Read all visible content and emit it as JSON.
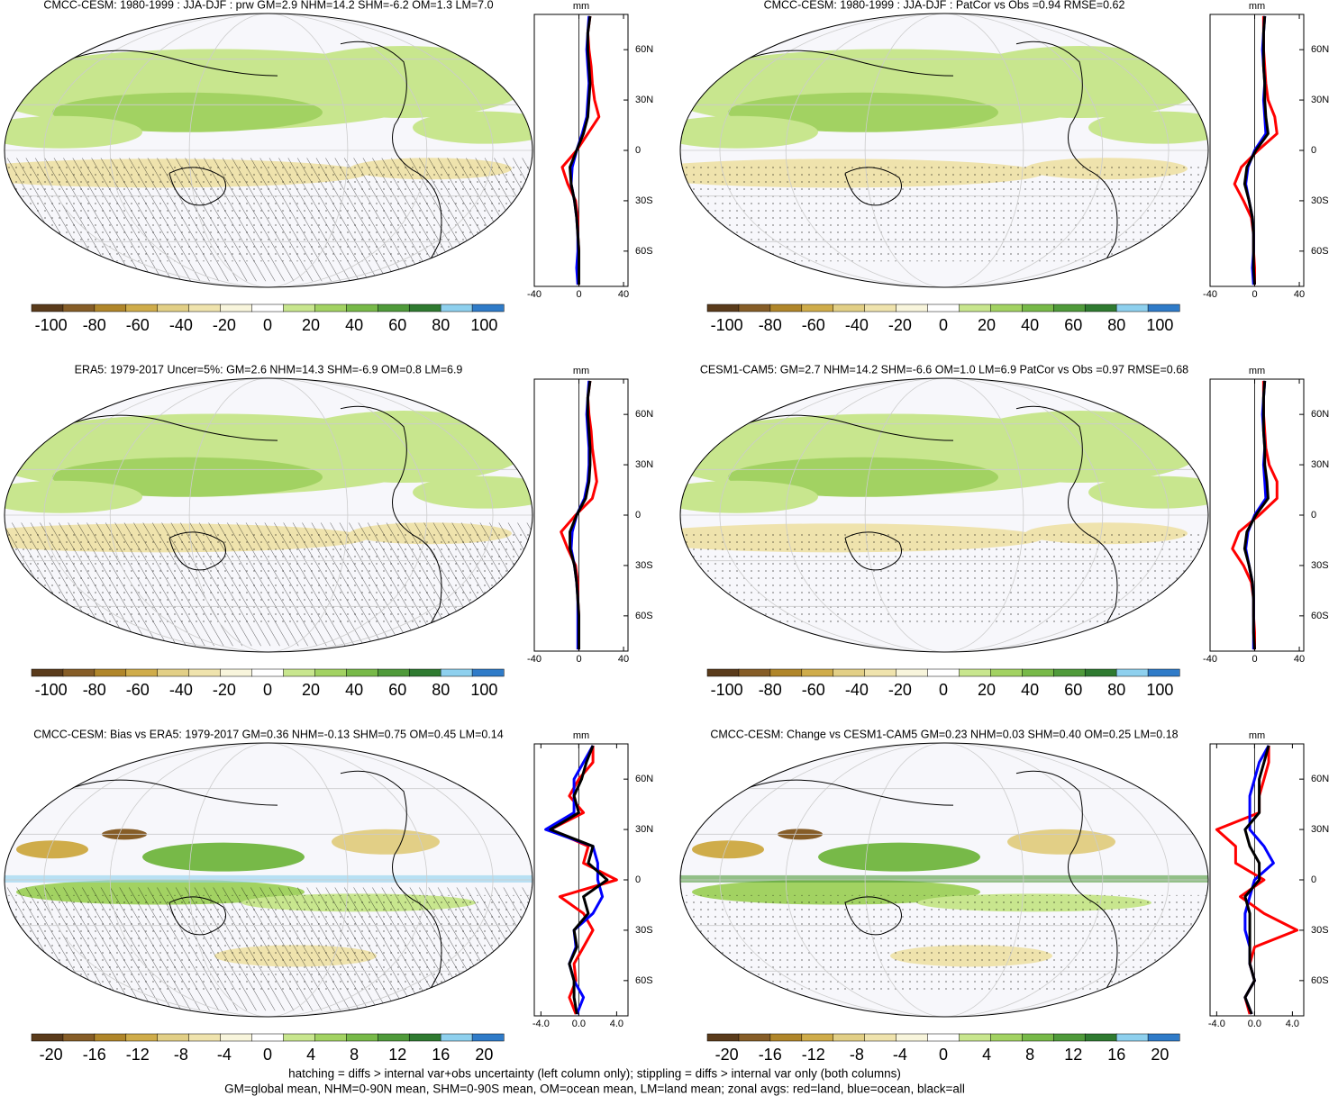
{
  "chart_data": [
    {
      "type": "line",
      "title": "CMCC-CESM: 1980-1999 : JJA-DJF : prw GM=2.9 NHM=14.2 SHM=-6.2 OM=1.3 LM=7.0",
      "x_label": "mm",
      "lat": [
        -80,
        -70,
        -60,
        -50,
        -40,
        -30,
        -20,
        -10,
        0,
        10,
        20,
        30,
        40,
        50,
        60,
        70,
        80
      ],
      "series": [
        {
          "color": "#ff0000",
          "values": [
            0,
            0,
            0,
            -1,
            -1,
            -3,
            -10,
            -15,
            -2,
            8,
            18,
            14,
            12,
            11,
            9,
            8,
            10
          ]
        },
        {
          "color": "#0000ff",
          "values": [
            -1,
            -2,
            -1,
            -1,
            -2,
            -4,
            -7,
            -6,
            -2,
            3,
            7,
            8,
            9,
            8,
            7,
            8,
            9
          ]
        },
        {
          "color": "#000000",
          "values": [
            0,
            0,
            0,
            -1,
            -2,
            -4,
            -7,
            -8,
            -2,
            4,
            8,
            9,
            10,
            9,
            8,
            8,
            10
          ]
        }
      ],
      "xlim": [
        -40,
        44
      ],
      "xticks": [
        -40,
        0,
        40
      ],
      "ylim": [
        -81,
        81
      ],
      "yticks": [
        {
          "value": -60,
          "label": "60S"
        },
        {
          "value": -30,
          "label": "30S"
        },
        0,
        {
          "value": 30,
          "label": "30N"
        },
        {
          "value": 60,
          "label": "60N"
        }
      ],
      "colorbar": {
        "lim": [
          -109,
          109
        ],
        "ticks": [
          -100,
          -80,
          -60,
          -40,
          -20,
          0,
          20,
          40,
          60,
          80,
          100
        ],
        "colors": [
          "#5a3b1b",
          "#865d27",
          "#b0862a",
          "#cfac4a",
          "#e2cf86",
          "#efe3ad",
          "#f8f5dc",
          "#ffffff",
          "#c8e68e",
          "#a2d262",
          "#77b948",
          "#4f9a3a",
          "#2f7a30",
          "#8ed0ee",
          "#2f7bc8"
        ]
      }
    },
    {
      "type": "line",
      "title": "CMCC-CESM: 1980-1999 : JJA-DJF : PatCor vs Obs =0.94 RMSE=0.62",
      "x_label": "mm",
      "lat": [
        -80,
        -70,
        -60,
        -50,
        -40,
        -30,
        -20,
        -10,
        0,
        10,
        20,
        30,
        40,
        50,
        60,
        70,
        80
      ],
      "series": [
        {
          "color": "#ff0000",
          "values": [
            0,
            0,
            -1,
            -1,
            -3,
            -10,
            -18,
            -12,
            3,
            20,
            18,
            12,
            10,
            9,
            8,
            8,
            8
          ]
        },
        {
          "color": "#0000ff",
          "values": [
            -1,
            -2,
            -1,
            -1,
            -2,
            -5,
            -8,
            -6,
            0,
            10,
            9,
            8,
            9,
            8,
            7,
            8,
            9
          ]
        },
        {
          "color": "#000000",
          "values": [
            0,
            -1,
            -1,
            -1,
            -2,
            -5,
            -9,
            -7,
            1,
            12,
            10,
            9,
            9,
            8,
            8,
            8,
            9
          ]
        }
      ],
      "xlim": [
        -40,
        44
      ],
      "xticks": [
        -40,
        0,
        40
      ],
      "ylim": [
        -81,
        81
      ],
      "yticks": [
        {
          "value": -60,
          "label": "60S"
        },
        {
          "value": -30,
          "label": "30S"
        },
        0,
        {
          "value": 30,
          "label": "30N"
        },
        {
          "value": 60,
          "label": "60N"
        }
      ],
      "colorbar": {
        "lim": [
          -109,
          109
        ],
        "ticks": [
          -100,
          -80,
          -60,
          -40,
          -20,
          0,
          20,
          40,
          60,
          80,
          100
        ],
        "colors": [
          "#5a3b1b",
          "#865d27",
          "#b0862a",
          "#cfac4a",
          "#e2cf86",
          "#efe3ad",
          "#f8f5dc",
          "#ffffff",
          "#c8e68e",
          "#a2d262",
          "#77b948",
          "#4f9a3a",
          "#2f7a30",
          "#8ed0ee",
          "#2f7bc8"
        ]
      }
    },
    {
      "type": "line",
      "title": "ERA5: 1979-2017 Uncer=5%: GM=2.6 NHM=14.3 SHM=-6.9 OM=0.8 LM=6.9",
      "x_label": "mm",
      "lat": [
        -80,
        -70,
        -60,
        -50,
        -40,
        -30,
        -20,
        -10,
        0,
        10,
        20,
        30,
        40,
        50,
        60,
        70,
        80
      ],
      "series": [
        {
          "color": "#ff0000",
          "values": [
            0,
            0,
            0,
            -1,
            -1,
            -3,
            -10,
            -16,
            -3,
            12,
            16,
            14,
            12,
            11,
            9,
            8,
            10
          ]
        },
        {
          "color": "#0000ff",
          "values": [
            -1,
            -1,
            -1,
            -1,
            -2,
            -4,
            -7,
            -6,
            -2,
            5,
            8,
            9,
            9,
            8,
            7,
            8,
            9
          ]
        },
        {
          "color": "#000000",
          "values": [
            0,
            0,
            0,
            -1,
            -2,
            -4,
            -8,
            -8,
            -2,
            6,
            9,
            10,
            10,
            9,
            8,
            8,
            10
          ]
        }
      ],
      "xlim": [
        -40,
        44
      ],
      "xticks": [
        -40,
        0,
        40
      ],
      "ylim": [
        -81,
        81
      ],
      "yticks": [
        {
          "value": -60,
          "label": "60S"
        },
        {
          "value": -30,
          "label": "30S"
        },
        0,
        {
          "value": 30,
          "label": "30N"
        },
        {
          "value": 60,
          "label": "60N"
        }
      ],
      "colorbar": {
        "lim": [
          -109,
          109
        ],
        "ticks": [
          -100,
          -80,
          -60,
          -40,
          -20,
          0,
          20,
          40,
          60,
          80,
          100
        ],
        "colors": [
          "#5a3b1b",
          "#865d27",
          "#b0862a",
          "#cfac4a",
          "#e2cf86",
          "#efe3ad",
          "#f8f5dc",
          "#ffffff",
          "#c8e68e",
          "#a2d262",
          "#77b948",
          "#4f9a3a",
          "#2f7a30",
          "#8ed0ee",
          "#2f7bc8"
        ]
      }
    },
    {
      "type": "line",
      "title": "CESM1-CAM5: GM=2.7 NHM=14.2 SHM=-6.6 OM=1.0 LM=6.9 PatCor vs Obs =0.97 RMSE=0.68",
      "x_label": "mm",
      "lat": [
        -80,
        -70,
        -60,
        -50,
        -40,
        -30,
        -20,
        -10,
        0,
        10,
        20,
        30,
        40,
        50,
        60,
        70,
        80
      ],
      "series": [
        {
          "color": "#ff0000",
          "values": [
            0,
            0,
            -1,
            -1,
            -3,
            -10,
            -20,
            -14,
            4,
            20,
            20,
            13,
            10,
            9,
            8,
            8,
            8
          ]
        },
        {
          "color": "#0000ff",
          "values": [
            -1,
            -1,
            -1,
            -1,
            -2,
            -5,
            -8,
            -6,
            0,
            10,
            9,
            8,
            9,
            8,
            7,
            8,
            9
          ]
        },
        {
          "color": "#000000",
          "values": [
            0,
            -1,
            -1,
            -1,
            -2,
            -5,
            -9,
            -7,
            1,
            12,
            11,
            9,
            9,
            8,
            8,
            8,
            9
          ]
        }
      ],
      "xlim": [
        -40,
        44
      ],
      "xticks": [
        -40,
        0,
        40
      ],
      "ylim": [
        -81,
        81
      ],
      "yticks": [
        {
          "value": -60,
          "label": "60S"
        },
        {
          "value": -30,
          "label": "30S"
        },
        0,
        {
          "value": 30,
          "label": "30N"
        },
        {
          "value": 60,
          "label": "60N"
        }
      ],
      "colorbar": {
        "lim": [
          -109,
          109
        ],
        "ticks": [
          -100,
          -80,
          -60,
          -40,
          -20,
          0,
          20,
          40,
          60,
          80,
          100
        ],
        "colors": [
          "#5a3b1b",
          "#865d27",
          "#b0862a",
          "#cfac4a",
          "#e2cf86",
          "#efe3ad",
          "#f8f5dc",
          "#ffffff",
          "#c8e68e",
          "#a2d262",
          "#77b948",
          "#4f9a3a",
          "#2f7a30",
          "#8ed0ee",
          "#2f7bc8"
        ]
      }
    },
    {
      "type": "line",
      "title": "CMCC-CESM: Bias vs ERA5: 1979-2017 GM=0.36 NHM=-0.13 SHM=0.75 OM=0.45 LM=0.14",
      "x_label": "mm",
      "lat": [
        -80,
        -70,
        -60,
        -50,
        -40,
        -30,
        -20,
        -10,
        0,
        10,
        20,
        30,
        40,
        50,
        60,
        70,
        80
      ],
      "series": [
        {
          "color": "#ff0000",
          "values": [
            -0.3,
            -1,
            -0.3,
            -0.5,
            0.5,
            1.5,
            0.5,
            -2,
            4,
            0.5,
            1,
            -3,
            0.5,
            -1,
            0,
            1.5,
            1.5
          ]
        },
        {
          "color": "#0000ff",
          "values": [
            -0.2,
            0.5,
            -0.5,
            -1,
            -0.3,
            -0.5,
            1.5,
            2.5,
            2,
            2,
            1.5,
            -3.5,
            -0.5,
            -0.5,
            -0.5,
            0.5,
            1.5
          ]
        },
        {
          "color": "#000000",
          "values": [
            -0.2,
            -0.5,
            -0.5,
            -1,
            -0.2,
            -0.5,
            1,
            0.5,
            3,
            1,
            1.5,
            -3,
            0,
            -0.5,
            0.3,
            0.8,
            1.5
          ]
        }
      ],
      "xlim": [
        -4.7,
        5.2
      ],
      "xticks": [
        {
          "value": -4,
          "label": "-4.0"
        },
        {
          "value": 0,
          "label": "0.0"
        },
        {
          "value": 4,
          "label": "4.0"
        }
      ],
      "ylim": [
        -81,
        81
      ],
      "yticks": [
        {
          "value": -60,
          "label": "60S"
        },
        {
          "value": -30,
          "label": "30S"
        },
        0,
        {
          "value": 30,
          "label": "30N"
        },
        {
          "value": 60,
          "label": "60N"
        }
      ],
      "colorbar": {
        "lim": [
          -21.8,
          21.8
        ],
        "ticks": [
          -20,
          -16,
          -12,
          -8,
          -4,
          0,
          4,
          8,
          12,
          16,
          20
        ],
        "colors": [
          "#5a3b1b",
          "#865d27",
          "#b0862a",
          "#cfac4a",
          "#e2cf86",
          "#efe3ad",
          "#f8f5dc",
          "#ffffff",
          "#c8e68e",
          "#a2d262",
          "#77b948",
          "#4f9a3a",
          "#2f7a30",
          "#8ed0ee",
          "#2f7bc8"
        ]
      }
    },
    {
      "type": "line",
      "title": "CMCC-CESM: Change vs CESM1-CAM5 GM=0.23 NHM=0.03 SHM=0.40 OM=0.25 LM=0.18",
      "x_label": "mm",
      "lat": [
        -80,
        -70,
        -60,
        -50,
        -40,
        -30,
        -20,
        -10,
        0,
        10,
        20,
        30,
        40,
        50,
        60,
        70,
        80
      ],
      "series": [
        {
          "color": "#ff0000",
          "values": [
            -0.5,
            -1,
            0,
            -0.5,
            0,
            4.5,
            1,
            -1.5,
            1,
            -2,
            -2,
            -4,
            0.5,
            0.5,
            1,
            1.5,
            1.5
          ]
        },
        {
          "color": "#0000ff",
          "values": [
            -0.3,
            -1,
            0,
            -0.5,
            -0.5,
            -1,
            -1,
            -0.5,
            0,
            2,
            1,
            -0.5,
            -0.5,
            -0.5,
            0,
            0.5,
            1.5
          ]
        },
        {
          "color": "#000000",
          "values": [
            -0.3,
            -1,
            0,
            -0.5,
            -0.5,
            -0.5,
            -0.5,
            -1,
            0.5,
            0.5,
            -0.5,
            -1,
            0.5,
            0.5,
            0.5,
            1,
            1.5
          ]
        }
      ],
      "xlim": [
        -4.7,
        5.2
      ],
      "xticks": [
        {
          "value": -4,
          "label": "-4.0"
        },
        {
          "value": 0,
          "label": "0.0"
        },
        {
          "value": 4,
          "label": "4.0"
        }
      ],
      "ylim": [
        -81,
        81
      ],
      "yticks": [
        {
          "value": -60,
          "label": "60S"
        },
        {
          "value": -30,
          "label": "30S"
        },
        0,
        {
          "value": 30,
          "label": "30N"
        },
        {
          "value": 60,
          "label": "60N"
        }
      ],
      "colorbar": {
        "lim": [
          -21.8,
          21.8
        ],
        "ticks": [
          -20,
          -16,
          -12,
          -8,
          -4,
          0,
          4,
          8,
          12,
          16,
          20
        ],
        "colors": [
          "#5a3b1b",
          "#865d27",
          "#b0862a",
          "#cfac4a",
          "#e2cf86",
          "#efe3ad",
          "#f8f5dc",
          "#ffffff",
          "#c8e68e",
          "#a2d262",
          "#77b948",
          "#4f9a3a",
          "#2f7a30",
          "#8ed0ee",
          "#2f7bc8"
        ]
      }
    }
  ],
  "footnote": [
    "hatching = diffs > internal var+obs uncertainty (left column only); stippling = diffs > internal var only (both columns)",
    "GM=global mean, NHM=0-90N mean, SHM=0-90S mean, OM=ocean mean, LM=land mean; zonal avgs: red=land, blue=ocean, black=all"
  ]
}
